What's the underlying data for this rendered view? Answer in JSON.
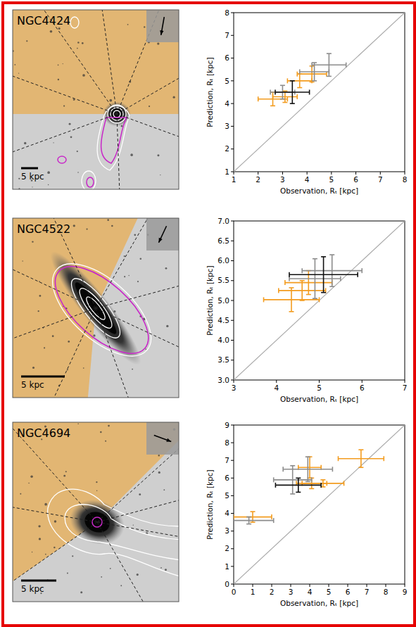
{
  "images": [
    {
      "label": "NGC4424",
      "scale_bar": "5 kpc"
    },
    {
      "label": "NGC4522",
      "scale_bar": "5 kpc"
    },
    {
      "label": "NGC4694",
      "scale_bar": "5 kpc"
    }
  ],
  "chart_data": [
    {
      "type": "scatter",
      "x_label": "Observation, Rₜ [kpc]",
      "y_label": "Prediction, Rₜ [kpc]",
      "xlim": [
        1,
        8
      ],
      "ylim": [
        1,
        8
      ],
      "xticks": [
        1,
        2,
        3,
        4,
        5,
        6,
        7,
        8
      ],
      "yticks": [
        1,
        2,
        3,
        4,
        5,
        6,
        7,
        8
      ],
      "series": [
        {
          "color": "#f39c1f",
          "x": [
            2.6,
            3.1,
            3.7,
            4.2
          ],
          "values": [
            4.2,
            4.3,
            5.0,
            5.3
          ],
          "xerr": [
            0.6,
            0.5,
            0.5,
            0.6
          ],
          "yerr": [
            0.3,
            0.25,
            0.3,
            0.35
          ]
        },
        {
          "color": "#8c8c8c",
          "x": [
            3.0,
            4.3,
            4.9
          ],
          "values": [
            4.5,
            5.4,
            5.7
          ],
          "xerr": [
            0.5,
            0.6,
            0.7
          ],
          "yerr": [
            0.3,
            0.4,
            0.5
          ]
        },
        {
          "color": "#111111",
          "x": [
            3.4
          ],
          "values": [
            4.5
          ],
          "xerr": [
            0.7
          ],
          "yerr": [
            0.5
          ]
        }
      ]
    },
    {
      "type": "scatter",
      "x_label": "Observation, Rₜ [kpc]",
      "y_label": "Prediction, Rₜ [kpc]",
      "xlim": [
        3,
        7
      ],
      "ylim": [
        3,
        7
      ],
      "xticks": [
        3,
        4,
        5,
        6,
        7
      ],
      "yticks": [
        {
          "value": 3,
          "label": "3.0"
        },
        {
          "value": 3.5,
          "label": "3.5"
        },
        {
          "value": 4,
          "label": "4.0"
        },
        {
          "value": 4.5,
          "label": "4.5"
        },
        {
          "value": 5,
          "label": "5.0"
        },
        {
          "value": 5.5,
          "label": "5.5"
        },
        {
          "value": 6,
          "label": "6.0"
        },
        {
          "value": 6.5,
          "label": "6.5"
        },
        {
          "value": 7,
          "label": "7.0"
        }
      ],
      "series": [
        {
          "color": "#f39c1f",
          "x": [
            4.35,
            4.6,
            4.75
          ],
          "values": [
            5.02,
            5.25,
            5.45
          ],
          "xerr": [
            0.65,
            0.55,
            0.55
          ],
          "yerr": [
            0.3,
            0.25,
            0.3
          ]
        },
        {
          "color": "#8c8c8c",
          "x": [
            4.9,
            5.3
          ],
          "values": [
            5.55,
            5.75
          ],
          "xerr": [
            0.6,
            0.7
          ],
          "yerr": [
            0.5,
            0.4
          ]
        },
        {
          "color": "#111111",
          "x": [
            5.1
          ],
          "values": [
            5.65
          ],
          "xerr": [
            0.8
          ],
          "yerr": [
            0.45
          ]
        }
      ]
    },
    {
      "type": "scatter",
      "x_label": "Observation, Rₜ [kpc]",
      "y_label": "Prediction, Rₜ [kpc]",
      "xlim": [
        0,
        9
      ],
      "ylim": [
        0,
        9
      ],
      "xticks": [
        0,
        1,
        2,
        3,
        4,
        5,
        6,
        7,
        8,
        9
      ],
      "yticks": [
        0,
        1,
        2,
        3,
        4,
        5,
        6,
        7,
        8,
        9
      ],
      "series": [
        {
          "color": "#f39c1f",
          "x": [
            1.0,
            4.1,
            4.7,
            6.7,
            4.0
          ],
          "values": [
            3.8,
            5.7,
            5.7,
            7.1,
            6.6
          ],
          "xerr": [
            1.0,
            0.8,
            1.1,
            1.2,
            0.6
          ],
          "yerr": [
            0.3,
            0.3,
            0.2,
            0.5,
            0.6
          ]
        },
        {
          "color": "#8c8c8c",
          "x": [
            0.8,
            3.1,
            3.9
          ],
          "values": [
            3.6,
            5.9,
            6.5
          ],
          "xerr": [
            1.3,
            1.0,
            1.3
          ],
          "yerr": [
            0.2,
            0.8,
            0.7
          ]
        },
        {
          "color": "#111111",
          "x": [
            3.4
          ],
          "values": [
            5.6
          ],
          "xerr": [
            1.2
          ],
          "yerr": [
            0.4
          ]
        }
      ]
    }
  ]
}
